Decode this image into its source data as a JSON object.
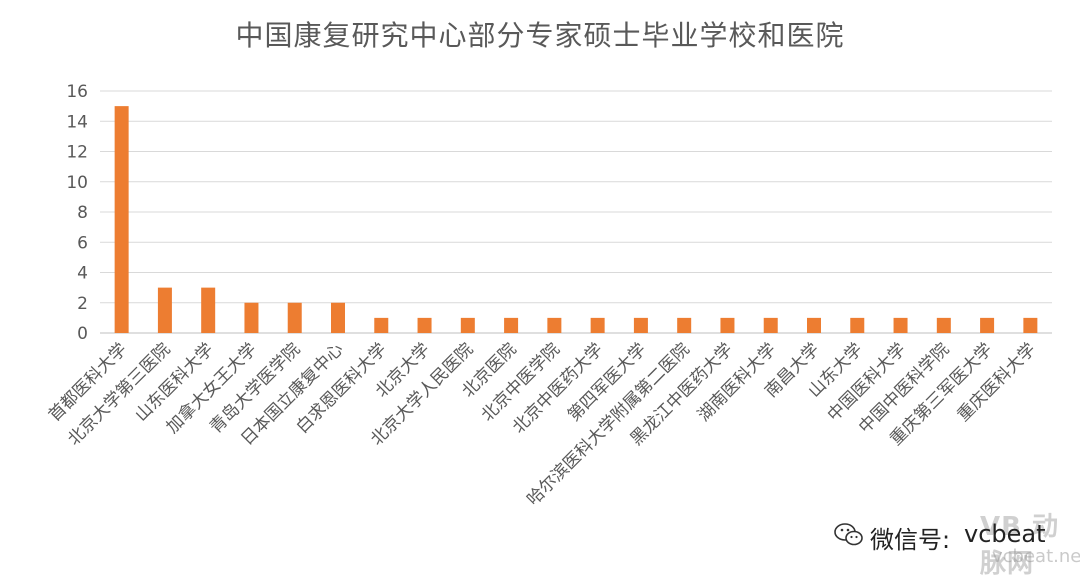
{
  "chart_data": {
    "type": "bar",
    "title": "中国康复研究中心部分专家硕士毕业学校和医院",
    "xlabel": "",
    "ylabel": "",
    "ylim": [
      0,
      16
    ],
    "yticks": [
      0,
      2,
      4,
      6,
      8,
      10,
      12,
      14,
      16
    ],
    "grid": true,
    "legend": "none",
    "bar_color": "#ED7D31",
    "categories": [
      "首都医科大学",
      "北京大学第三医院",
      "山东医科大学",
      "加拿大女王大学",
      "青岛大学医学院",
      "日本国立康复中心",
      "白求恩医科大学",
      "北京大学",
      "北京大学人民医院",
      "北京医院",
      "北京中医学院",
      "北京中医药大学",
      "第四军医大学",
      "哈尔滨医科大学附属第二医院",
      "黑龙江中医药大学",
      "湖南医科大学",
      "南昌大学",
      "山东大学",
      "中国医科大学",
      "中国中医科学院",
      "重庆第三军医大学",
      "重庆医科大学"
    ],
    "values": [
      15,
      3,
      3,
      2,
      2,
      2,
      1,
      1,
      1,
      1,
      1,
      1,
      1,
      1,
      1,
      1,
      1,
      1,
      1,
      1,
      1,
      1
    ]
  },
  "watermark": {
    "icon": "wechat-icon",
    "prefix": "微信号:",
    "account": "vcbeat",
    "logo_text": "VB 动脉网",
    "domain": "vcbeat.net"
  }
}
